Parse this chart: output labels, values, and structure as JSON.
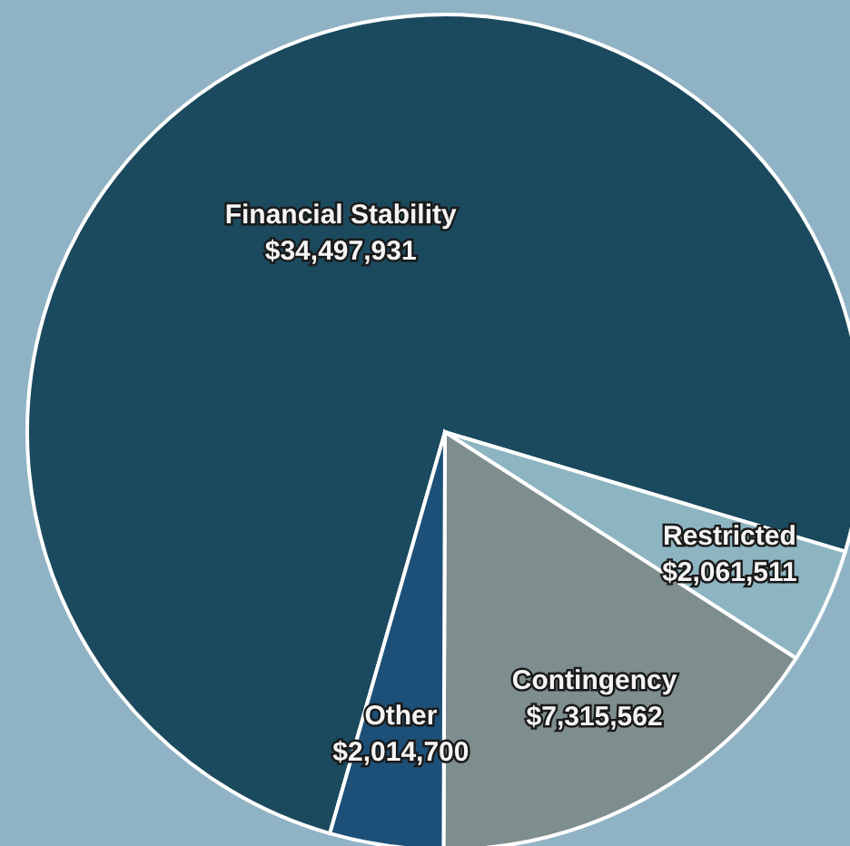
{
  "chart_data": {
    "type": "pie",
    "categories": [
      "Financial Stability",
      "Restricted",
      "Contingency",
      "Other"
    ],
    "values": [
      34497931,
      2061511,
      7315562,
      2014700
    ],
    "value_labels": [
      "$34,497,931",
      "$2,061,511",
      "$7,315,562",
      "$2,014,700"
    ],
    "colors": [
      "#1b4a5e",
      "#8db5c1",
      "#7e8d8d",
      "#1d5078"
    ],
    "legend": false
  }
}
